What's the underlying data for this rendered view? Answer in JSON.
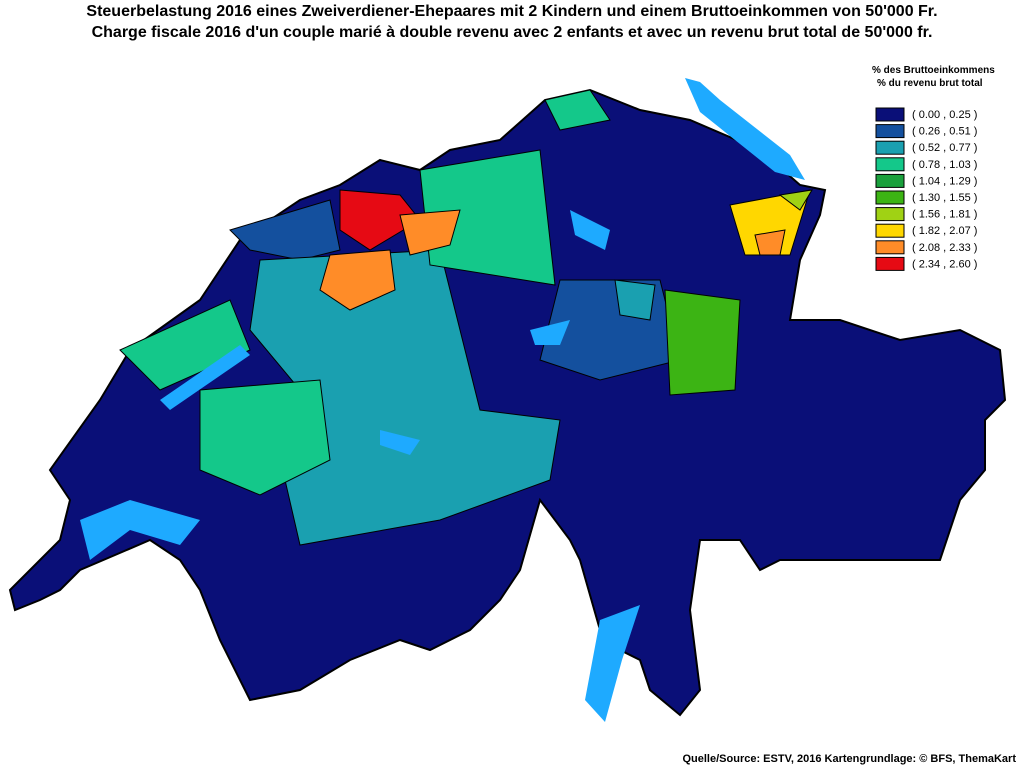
{
  "header": {
    "title_de": "Steuerbelastung 2016 eines Zweiverdiener-Ehepaares mit 2 Kindern und einem Bruttoeinkommen von 50'000 Fr.",
    "title_fr": "Charge fiscale 2016 d'un couple marié à double revenu avec 2 enfants et avec un revenu brut total de 50'000 fr."
  },
  "legend": {
    "title_de": "% des Bruttoeinkommens",
    "title_fr": "% du revenu brut total",
    "items": [
      {
        "label": "( 0.00 , 0.25 )",
        "color": "#0a0f78"
      },
      {
        "label": "( 0.26 , 0.51 )",
        "color": "#14509e"
      },
      {
        "label": "( 0.52 , 0.77 )",
        "color": "#1aa0b0"
      },
      {
        "label": "( 0.78 , 1.03 )",
        "color": "#14c88a"
      },
      {
        "label": "( 1.04 , 1.29 )",
        "color": "#1aa03c"
      },
      {
        "label": "( 1.30 , 1.55 )",
        "color": "#3cb414"
      },
      {
        "label": "( 1.56 , 1.81 )",
        "color": "#a0d214"
      },
      {
        "label": "( 1.82 , 2.07 )",
        "color": "#ffd700"
      },
      {
        "label": "( 2.08 , 2.33 )",
        "color": "#ff8c28"
      },
      {
        "label": "( 2.34 , 2.60 )",
        "color": "#e60a14"
      }
    ]
  },
  "source": "Quelle/Source: ESTV, 2016 Kartengrundlage: © BFS, ThemaKart"
}
